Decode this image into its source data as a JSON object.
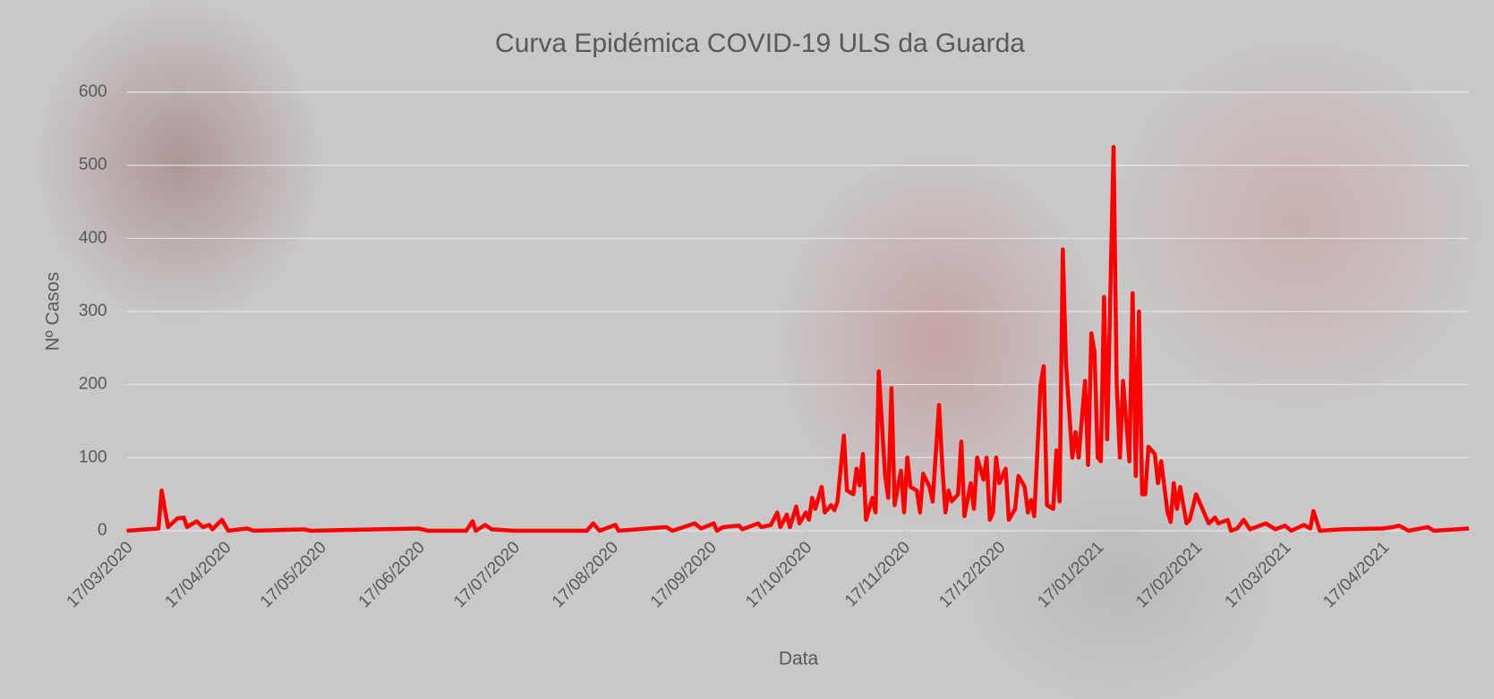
{
  "chart_data": {
    "type": "line",
    "title": "Curva Epidémica COVID-19 ULS da Guarda",
    "x_label": "Data",
    "y_label": "Nº Casos",
    "x": [
      "17/03/2020",
      "27/03/2020",
      "28/03/2020",
      "30/03/2020",
      "02/04/2020",
      "04/04/2020",
      "05/04/2020",
      "08/04/2020",
      "10/04/2020",
      "12/04/2020",
      "13/04/2020",
      "16/04/2020",
      "18/04/2020",
      "24/04/2020",
      "26/04/2020",
      "12/05/2020",
      "14/05/2020",
      "17/06/2020",
      "20/06/2020",
      "02/07/2020",
      "04/07/2020",
      "05/07/2020",
      "08/07/2020",
      "10/07/2020",
      "17/07/2020",
      "09/08/2020",
      "11/08/2020",
      "13/08/2020",
      "18/08/2020",
      "19/08/2020",
      "03/09/2020",
      "05/09/2020",
      "12/09/2020",
      "14/09/2020",
      "18/09/2020",
      "19/09/2020",
      "21/09/2020",
      "26/09/2020",
      "27/09/2020",
      "02/10/2020",
      "03/10/2020",
      "06/10/2020",
      "08/10/2020",
      "09/10/2020",
      "11/10/2020",
      "12/10/2020",
      "14/10/2020",
      "15/10/2020",
      "17/10/2020",
      "18/10/2020",
      "19/10/2020",
      "20/10/2020",
      "22/10/2020",
      "23/10/2020",
      "25/10/2020",
      "26/10/2020",
      "27/10/2020",
      "29/10/2020",
      "30/10/2020",
      "01/11/2020",
      "02/11/2020",
      "03/11/2020",
      "04/11/2020",
      "05/11/2020",
      "07/11/2020",
      "08/11/2020",
      "09/11/2020",
      "11/11/2020",
      "12/11/2020",
      "13/11/2020",
      "14/11/2020",
      "16/11/2020",
      "17/11/2020",
      "18/11/2020",
      "19/11/2020",
      "21/11/2020",
      "22/11/2020",
      "23/11/2020",
      "25/11/2020",
      "26/11/2020",
      "28/11/2020",
      "29/11/2020",
      "30/11/2020",
      "01/12/2020",
      "02/12/2020",
      "04/12/2020",
      "05/12/2020",
      "06/12/2020",
      "08/12/2020",
      "09/12/2020",
      "10/12/2020",
      "12/12/2020",
      "13/12/2020",
      "14/12/2020",
      "15/12/2020",
      "16/12/2020",
      "17/12/2020",
      "19/12/2020",
      "20/12/2020",
      "22/12/2020",
      "23/12/2020",
      "25/12/2020",
      "26/12/2020",
      "27/12/2020",
      "28/12/2020",
      "30/12/2020",
      "31/12/2020",
      "01/01/2021",
      "03/01/2021",
      "04/01/2021",
      "05/01/2021",
      "06/01/2021",
      "07/01/2021",
      "09/01/2021",
      "10/01/2021",
      "11/01/2021",
      "13/01/2021",
      "14/01/2021",
      "15/01/2021",
      "16/01/2021",
      "17/01/2021",
      "18/01/2021",
      "19/01/2021",
      "20/01/2021",
      "22/01/2021",
      "23/01/2021",
      "24/01/2021",
      "25/01/2021",
      "27/01/2021",
      "28/01/2021",
      "29/01/2021",
      "30/01/2021",
      "31/01/2021",
      "01/02/2021",
      "02/02/2021",
      "04/02/2021",
      "05/02/2021",
      "06/02/2021",
      "08/02/2021",
      "09/02/2021",
      "10/02/2021",
      "11/02/2021",
      "12/02/2021",
      "14/02/2021",
      "15/02/2021",
      "17/02/2021",
      "19/02/2021",
      "21/02/2021",
      "23/02/2021",
      "24/02/2021",
      "27/02/2021",
      "28/02/2021",
      "02/03/2021",
      "04/03/2021",
      "06/03/2021",
      "11/03/2021",
      "14/03/2021",
      "17/03/2021",
      "19/03/2021",
      "23/03/2021",
      "25/03/2021",
      "26/03/2021",
      "28/03/2021",
      "04/04/2021",
      "17/04/2021",
      "20/04/2021",
      "22/04/2021",
      "25/04/2021",
      "01/05/2021",
      "03/05/2021",
      "14/05/2021"
    ],
    "series": [
      {
        "name": "Nº Casos",
        "color": "#ff0000",
        "values": [
          0,
          3,
          55,
          5,
          17,
          18,
          5,
          13,
          5,
          8,
          2,
          15,
          0,
          3,
          0,
          2,
          0,
          3,
          0,
          0,
          13,
          0,
          8,
          2,
          0,
          0,
          10,
          0,
          8,
          0,
          5,
          0,
          10,
          3,
          10,
          0,
          5,
          7,
          2,
          10,
          5,
          8,
          25,
          5,
          22,
          5,
          33,
          10,
          25,
          15,
          45,
          30,
          60,
          25,
          35,
          28,
          40,
          130,
          55,
          50,
          85,
          62,
          105,
          15,
          45,
          25,
          218,
          75,
          45,
          195,
          35,
          82,
          25,
          100,
          60,
          55,
          25,
          78,
          60,
          40,
          172,
          90,
          25,
          55,
          40,
          50,
          122,
          20,
          65,
          30,
          100,
          70,
          100,
          15,
          25,
          100,
          65,
          85,
          15,
          30,
          75,
          60,
          25,
          42,
          20,
          200,
          225,
          35,
          30,
          110,
          40,
          385,
          230,
          100,
          135,
          100,
          205,
          90,
          270,
          245,
          100,
          95,
          320,
          125,
          525,
          200,
          100,
          205,
          95,
          325,
          75,
          300,
          50,
          50,
          115,
          105,
          65,
          95,
          25,
          12,
          65,
          30,
          60,
          10,
          15,
          50,
          30,
          10,
          18,
          10,
          15,
          0,
          3,
          15,
          2,
          10,
          2,
          7,
          0,
          8,
          3,
          27,
          0,
          2,
          3,
          5,
          7,
          0,
          5,
          0,
          3
        ]
      }
    ],
    "xlim": [
      "17/03/2020",
      "14/05/2021"
    ],
    "xticks": [
      "17/03/2020",
      "17/04/2020",
      "17/05/2020",
      "17/06/2020",
      "17/07/2020",
      "17/08/2020",
      "17/09/2020",
      "17/10/2020",
      "17/11/2020",
      "17/12/2020",
      "17/01/2021",
      "17/02/2021",
      "17/03/2021",
      "17/04/2021"
    ],
    "ylim": [
      0,
      600
    ],
    "yticks": [
      0,
      100,
      200,
      300,
      400,
      500,
      600
    ],
    "grid": true
  }
}
